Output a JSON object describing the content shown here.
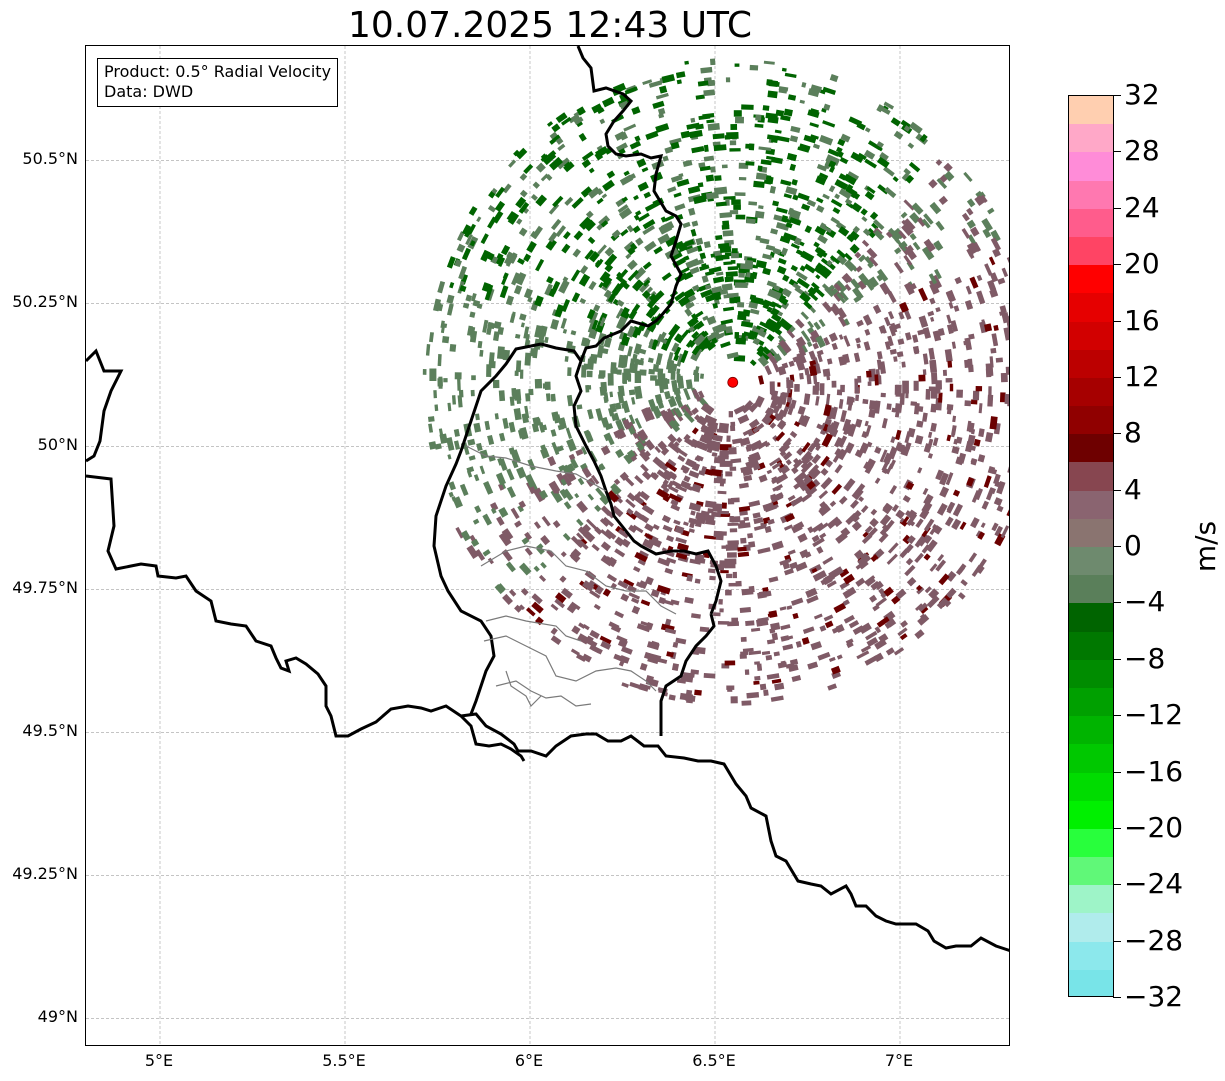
{
  "title": "10.07.2025 12:43 UTC",
  "info_box": {
    "product": "Product: 0.5° Radial Velocity",
    "source": "Data: DWD"
  },
  "map": {
    "lon_range": [
      4.8,
      7.3
    ],
    "lat_range": [
      48.95,
      50.7
    ],
    "lat_labels": [
      "50.5°N",
      "50.25°N",
      "50°N",
      "49.75°N",
      "49.5°N",
      "49.25°N",
      "49°N"
    ],
    "lat_values": [
      50.5,
      50.25,
      50.0,
      49.75,
      49.5,
      49.25,
      49.0
    ],
    "lon_labels": [
      "5°E",
      "5.5°E",
      "6°E",
      "6.5°E",
      "7°E"
    ],
    "lon_values": [
      5.0,
      5.5,
      6.0,
      6.5,
      7.0
    ],
    "gridlines": true,
    "radar_site": {
      "lon": 6.548,
      "lat": 50.112,
      "color": "#ff0000"
    },
    "echo_colors": {
      "inbound_strong": "#006400",
      "inbound_weak": "#5b7f5b",
      "outbound_weak": "#7f5a66",
      "outbound_strong": "#6b0000"
    }
  },
  "colorbar": {
    "unit": "m/s",
    "min": -32,
    "max": 32,
    "tick_labels": [
      "32",
      "28",
      "24",
      "20",
      "16",
      "12",
      "8",
      "4",
      "0",
      "−4",
      "−8",
      "−12",
      "−16",
      "−20",
      "−24",
      "−28",
      "−32"
    ],
    "tick_values": [
      32,
      28,
      24,
      20,
      16,
      12,
      8,
      4,
      0,
      -4,
      -8,
      -12,
      -16,
      -20,
      -24,
      -28,
      -32
    ],
    "colors_top_to_bottom": [
      "#ffcfb0",
      "#ffa8c8",
      "#ff8cd8",
      "#ff78b0",
      "#ff5c8c",
      "#ff4464",
      "#ff0000",
      "#e60000",
      "#d20000",
      "#bc0000",
      "#a60000",
      "#900000",
      "#6e0000",
      "#874650",
      "#8a6470",
      "#8a7470",
      "#6e8a6e",
      "#5a7f5a",
      "#006400",
      "#007800",
      "#008c00",
      "#00a000",
      "#00b400",
      "#00c800",
      "#00dc00",
      "#00f000",
      "#28ff3c",
      "#60f878",
      "#9ef4c8",
      "#b0ecec",
      "#8ce8ec",
      "#78e4e8"
    ]
  }
}
